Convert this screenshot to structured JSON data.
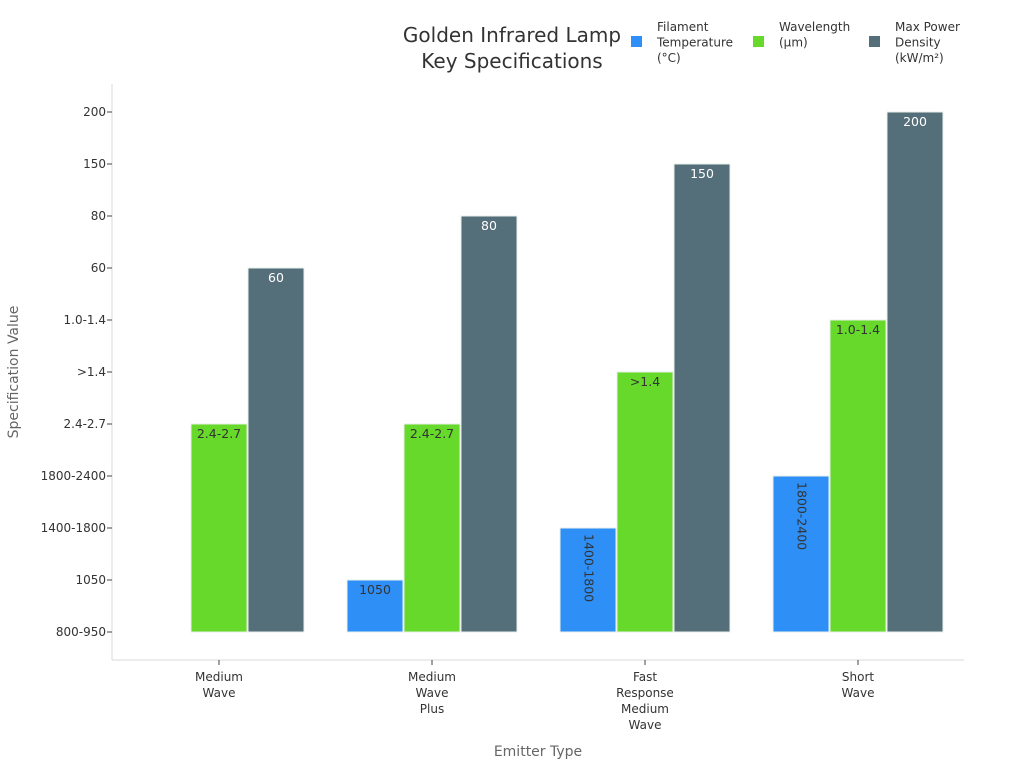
{
  "chart_data": {
    "type": "bar",
    "title": [
      "Golden Infrared Lamp",
      "Key Specifications"
    ],
    "xlabel": "Emitter Type",
    "ylabel": "Specification Value",
    "y_categories": [
      "800-950",
      "1050",
      "1400-1800",
      "1800-2400",
      "2.4-2.7",
      ">1.4",
      "1.0-1.4",
      "60",
      "80",
      "150",
      "200"
    ],
    "categories": [
      [
        "Medium",
        "Wave"
      ],
      [
        "Medium",
        "Wave",
        "Plus"
      ],
      [
        "Fast",
        "Response",
        "Medium",
        "Wave"
      ],
      [
        "Short",
        "Wave"
      ]
    ],
    "series": [
      {
        "name": [
          "Filament",
          "Temperature",
          "(°C)"
        ],
        "color": "#2e90f7",
        "label_color": "#333333",
        "values": [
          "800-950",
          "1050",
          "1400-1800",
          "1800-2400"
        ],
        "labels": [
          "",
          "1050",
          "1400-1800",
          "1800-2400"
        ],
        "rotate_labels": [
          false,
          false,
          true,
          true
        ]
      },
      {
        "name": [
          "Wavelength",
          "(µm)"
        ],
        "color": "#66d92a",
        "label_color": "#333333",
        "values": [
          "2.4-2.7",
          "2.4-2.7",
          ">1.4",
          "1.0-1.4"
        ],
        "labels": [
          "2.4-2.7",
          "2.4-2.7",
          ">1.4",
          "1.0-1.4"
        ],
        "rotate_labels": [
          false,
          false,
          false,
          false
        ]
      },
      {
        "name": [
          "Max Power",
          "Density",
          "(kW/m²)"
        ],
        "color": "#546e7a",
        "label_color": "#ffffff",
        "values": [
          "60",
          "80",
          "150",
          "200"
        ],
        "labels": [
          "60",
          "80",
          "150",
          "200"
        ],
        "rotate_labels": [
          false,
          false,
          false,
          false
        ]
      }
    ],
    "legend_position": "top-right"
  }
}
